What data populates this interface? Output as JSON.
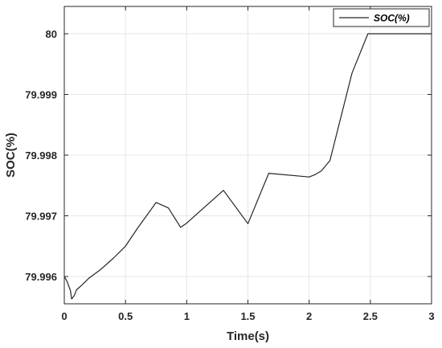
{
  "chart_data": {
    "type": "line",
    "title": "",
    "xlabel": "Time(s)",
    "ylabel": "SOC(%)",
    "xlim": [
      0,
      3
    ],
    "ylim": [
      79.99555,
      80.00045
    ],
    "grid": true,
    "legend_position": "top-right",
    "x_ticks": [
      0,
      0.5,
      1,
      1.5,
      2,
      2.5,
      3
    ],
    "x_tick_labels": [
      "0",
      "0.5",
      "1",
      "1.5",
      "2",
      "2.5",
      "3"
    ],
    "y_ticks": [
      79.996,
      79.997,
      79.998,
      79.999,
      80
    ],
    "y_tick_labels": [
      "79.996",
      "79.997",
      "79.998",
      "79.999",
      "80"
    ],
    "series": [
      {
        "name": "SOC(%)",
        "color": "#262626",
        "x": [
          0,
          0.02,
          0.05,
          0.06,
          0.08,
          0.1,
          0.15,
          0.2,
          0.3,
          0.4,
          0.5,
          0.6,
          0.75,
          0.85,
          0.95,
          1.0,
          1.3,
          1.5,
          1.67,
          2.0,
          2.05,
          2.1,
          2.17,
          2.35,
          2.48,
          3.0
        ],
        "values": [
          79.996,
          79.99593,
          79.99577,
          79.99563,
          79.99568,
          79.99578,
          79.99587,
          79.99597,
          79.99612,
          79.9963,
          79.9965,
          79.9968,
          79.99722,
          79.99713,
          79.99681,
          79.99688,
          79.99742,
          79.99687,
          79.9977,
          79.99764,
          79.99768,
          79.99774,
          79.99791,
          79.99935,
          80.0,
          80.0
        ]
      }
    ]
  },
  "legend": {
    "label": "SOC(%)"
  },
  "colors": {
    "axis": "#262626",
    "grid": "#e6e6e6",
    "line": "#262626",
    "background": "#ffffff"
  }
}
